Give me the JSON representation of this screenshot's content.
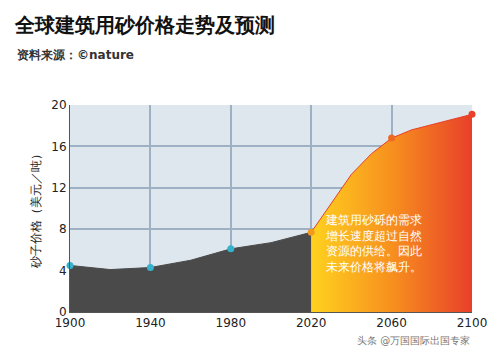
{
  "chart_data": {
    "type": "area",
    "title": "全球建筑用砂价格走势及预测",
    "subtitle": "资料来源：©nature",
    "y_label": "砂子价格（美元／吨）",
    "annotation": "建筑用砂砾的需求增长速度超过自然资源的供给。因此未来价格将飙升。",
    "watermark": "头条 @万国国际出国专家",
    "series": [
      {
        "type": "area",
        "color": "#4a4a4a",
        "x": [
          1900,
          1920,
          1940,
          1960,
          1980,
          2000,
          2020
        ],
        "values": [
          4.5,
          4.1,
          4.3,
          5.0,
          6.1,
          6.7,
          7.7
        ]
      },
      {
        "type": "area",
        "color": "#e8402a",
        "x": [
          2020,
          2030,
          2040,
          2050,
          2060,
          2070,
          2080,
          2090,
          2100
        ],
        "values": [
          7.7,
          10.5,
          13.3,
          15.3,
          16.8,
          17.6,
          18.1,
          18.6,
          19.1
        ]
      },
      {
        "type": "scatter",
        "marker": "circle",
        "x": [
          1900,
          1940,
          1980,
          2020,
          2060,
          2100
        ],
        "values": [
          4.5,
          4.3,
          6.1,
          7.7,
          16.8,
          19.1
        ],
        "colors": [
          "#36b3cc",
          "#36b3cc",
          "#36b3cc",
          "#f39a1e",
          "#ee6a22",
          "#e8402a"
        ]
      }
    ],
    "xlim": [
      1900,
      2100
    ],
    "xticks": [
      1900,
      1940,
      1980,
      2020,
      2060,
      2100
    ],
    "ylim": [
      0,
      20
    ],
    "yticks": [
      0,
      4,
      8,
      12,
      16,
      20
    ],
    "grid": true
  }
}
